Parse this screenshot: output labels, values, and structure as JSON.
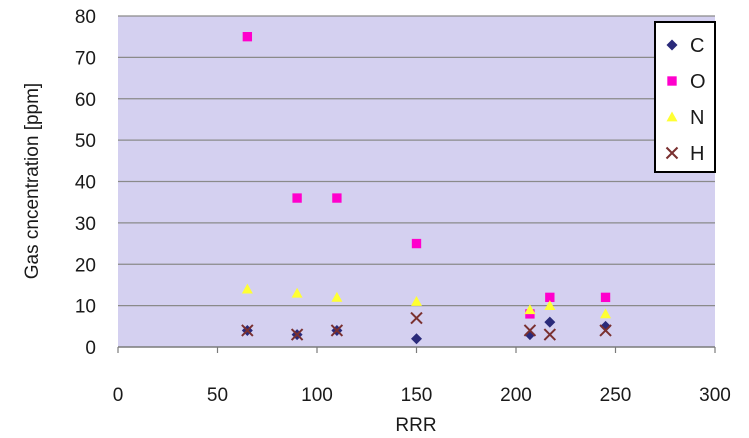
{
  "chart_data": {
    "type": "scatter",
    "title": "",
    "xlabel": "RRR",
    "ylabel": "Gas cncentration [ppm]",
    "xlim": [
      0,
      300
    ],
    "ylim": [
      0,
      80
    ],
    "x_ticks": [
      "0",
      "50",
      "100",
      "150",
      "200",
      "250",
      "300"
    ],
    "y_ticks": [
      "0",
      "10",
      "20",
      "30",
      "40",
      "50",
      "60",
      "70",
      "80"
    ],
    "grid": "horizontal",
    "plot_background": "#d4d0f0",
    "legend_position": "top-right",
    "series": [
      {
        "name": "C",
        "marker": "diamond",
        "color": "#2a2a7a",
        "points": [
          [
            65,
            4
          ],
          [
            90,
            3
          ],
          [
            110,
            4
          ],
          [
            150,
            2
          ],
          [
            207,
            3
          ],
          [
            217,
            6
          ],
          [
            245,
            5
          ]
        ]
      },
      {
        "name": "O",
        "marker": "square",
        "color": "#ff00cc",
        "points": [
          [
            65,
            75
          ],
          [
            90,
            36
          ],
          [
            110,
            36
          ],
          [
            150,
            25
          ],
          [
            207,
            8
          ],
          [
            217,
            12
          ],
          [
            245,
            12
          ]
        ]
      },
      {
        "name": "N",
        "marker": "triangle",
        "color": "#ffff33",
        "points": [
          [
            65,
            14
          ],
          [
            90,
            13
          ],
          [
            110,
            12
          ],
          [
            150,
            11
          ],
          [
            207,
            9
          ],
          [
            217,
            10
          ],
          [
            245,
            8
          ]
        ]
      },
      {
        "name": "H",
        "marker": "x",
        "color": "#7a3030",
        "points": [
          [
            65,
            4
          ],
          [
            90,
            3
          ],
          [
            110,
            4
          ],
          [
            150,
            7
          ],
          [
            207,
            4
          ],
          [
            217,
            3
          ],
          [
            245,
            4
          ]
        ]
      }
    ]
  }
}
